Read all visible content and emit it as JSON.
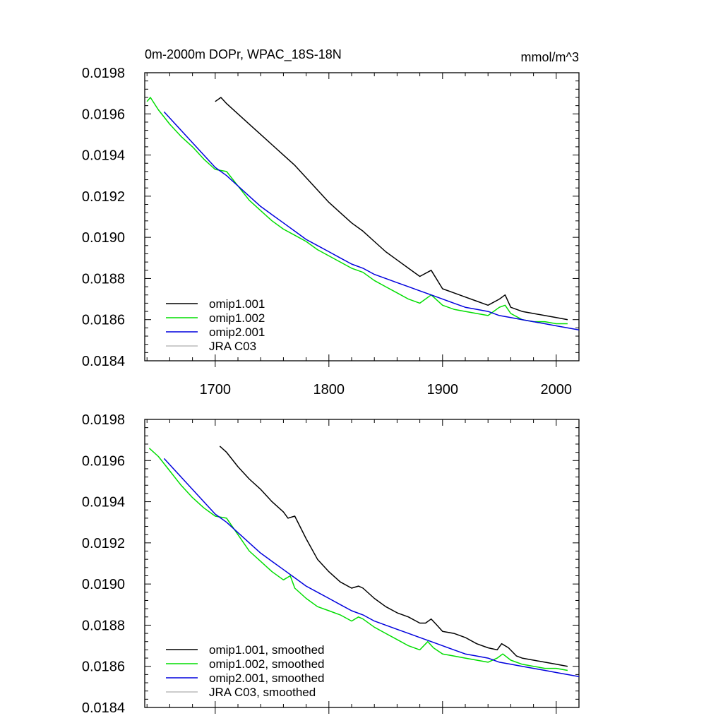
{
  "chart_data": [
    {
      "type": "line",
      "title": "0m-2000m DOPr, WPAC_18S-18N",
      "units": "mmol/m^3",
      "xlim": [
        1638,
        2020
      ],
      "ylim": [
        0.0184,
        0.0198
      ],
      "x_ticks": [
        1700,
        1800,
        1900,
        2000
      ],
      "x_tick_labels": [
        "1700",
        "1800",
        "1900",
        "2000"
      ],
      "y_ticks": [
        0.0184,
        0.0186,
        0.0188,
        0.019,
        0.0192,
        0.0194,
        0.0196,
        0.0198
      ],
      "y_tick_labels": [
        "0.0184",
        "0.0186",
        "0.0188",
        "0.0190",
        "0.0192",
        "0.0194",
        "0.0196",
        "0.0198"
      ],
      "legend_position": "bottom-left",
      "series": [
        {
          "name": "omip1.001",
          "color": "#000000",
          "x": [
            1700,
            1705,
            1710,
            1720,
            1730,
            1740,
            1750,
            1760,
            1770,
            1780,
            1790,
            1800,
            1810,
            1820,
            1830,
            1840,
            1850,
            1860,
            1870,
            1880,
            1890,
            1900,
            1910,
            1920,
            1930,
            1940,
            1950,
            1955,
            1960,
            1970,
            1980,
            1990,
            2000,
            2010
          ],
          "values": [
            0.01966,
            0.01968,
            0.01965,
            0.0196,
            0.01955,
            0.0195,
            0.01945,
            0.0194,
            0.01935,
            0.01929,
            0.01923,
            0.01917,
            0.01912,
            0.01907,
            0.01903,
            0.01898,
            0.01893,
            0.01889,
            0.01885,
            0.01881,
            0.01884,
            0.01875,
            0.01873,
            0.01871,
            0.01869,
            0.01867,
            0.0187,
            0.01872,
            0.01866,
            0.01864,
            0.01863,
            0.01862,
            0.01861,
            0.0186
          ]
        },
        {
          "name": "omip1.002",
          "color": "#00dd00",
          "x": [
            1640,
            1643,
            1650,
            1660,
            1670,
            1680,
            1690,
            1700,
            1710,
            1720,
            1730,
            1740,
            1750,
            1760,
            1770,
            1780,
            1790,
            1800,
            1810,
            1820,
            1830,
            1840,
            1850,
            1860,
            1870,
            1880,
            1890,
            1900,
            1910,
            1920,
            1930,
            1940,
            1950,
            1955,
            1960,
            1970,
            1980,
            1990,
            2000,
            2010
          ],
          "values": [
            0.01966,
            0.01968,
            0.01962,
            0.01955,
            0.01949,
            0.01944,
            0.01938,
            0.01933,
            0.01932,
            0.01925,
            0.01918,
            0.01913,
            0.01908,
            0.01904,
            0.01901,
            0.01898,
            0.01894,
            0.01891,
            0.01888,
            0.01885,
            0.01883,
            0.01879,
            0.01876,
            0.01873,
            0.0187,
            0.01868,
            0.01872,
            0.01867,
            0.01865,
            0.01864,
            0.01863,
            0.01862,
            0.01866,
            0.01867,
            0.01863,
            0.0186,
            0.01859,
            0.01859,
            0.01858,
            0.01858
          ]
        },
        {
          "name": "omip2.001",
          "color": "#0000dd",
          "x": [
            1655,
            1660,
            1670,
            1680,
            1690,
            1700,
            1710,
            1720,
            1730,
            1740,
            1750,
            1760,
            1770,
            1780,
            1790,
            1800,
            1810,
            1820,
            1830,
            1840,
            1850,
            1860,
            1870,
            1880,
            1890,
            1900,
            1910,
            1920,
            1930,
            1940,
            1950,
            1960,
            1970,
            1980,
            1990,
            2000,
            2010,
            2020
          ],
          "values": [
            0.01961,
            0.01958,
            0.01952,
            0.01946,
            0.0194,
            0.01934,
            0.0193,
            0.01925,
            0.0192,
            0.01915,
            0.01911,
            0.01907,
            0.01903,
            0.01899,
            0.01896,
            0.01893,
            0.0189,
            0.01887,
            0.01885,
            0.01882,
            0.0188,
            0.01878,
            0.01876,
            0.01874,
            0.01872,
            0.0187,
            0.01868,
            0.01866,
            0.01865,
            0.01864,
            0.01862,
            0.01861,
            0.0186,
            0.01859,
            0.01858,
            0.01857,
            0.01856,
            0.01855
          ]
        },
        {
          "name": "JRA C03",
          "color": "#bbbbbb",
          "x": [],
          "values": []
        }
      ]
    },
    {
      "type": "line",
      "title": "",
      "units": "",
      "xlim": [
        1638,
        2020
      ],
      "ylim": [
        0.0184,
        0.0198
      ],
      "x_ticks": [
        1700,
        1800,
        1900,
        2000
      ],
      "x_tick_labels": [],
      "y_ticks": [
        0.0184,
        0.0186,
        0.0188,
        0.019,
        0.0192,
        0.0194,
        0.0196,
        0.0198
      ],
      "y_tick_labels": [
        "0.0184",
        "0.0186",
        "0.0188",
        "0.0190",
        "0.0192",
        "0.0194",
        "0.0196",
        "0.0198"
      ],
      "legend_position": "bottom-left",
      "series": [
        {
          "name": "omip1.001, smoothed",
          "color": "#000000",
          "x": [
            1704,
            1710,
            1720,
            1730,
            1740,
            1750,
            1760,
            1764,
            1770,
            1780,
            1790,
            1800,
            1810,
            1820,
            1826,
            1830,
            1840,
            1850,
            1860,
            1870,
            1880,
            1885,
            1890,
            1895,
            1900,
            1910,
            1920,
            1930,
            1940,
            1948,
            1952,
            1958,
            1965,
            1970,
            1980,
            1990,
            2000,
            2010
          ],
          "values": [
            0.01967,
            0.01964,
            0.01957,
            0.01951,
            0.01946,
            0.0194,
            0.01935,
            0.01932,
            0.01933,
            0.01922,
            0.01912,
            0.01906,
            0.01901,
            0.01898,
            0.01899,
            0.01898,
            0.01893,
            0.01889,
            0.01886,
            0.01884,
            0.01881,
            0.01881,
            0.01883,
            0.0188,
            0.01877,
            0.01876,
            0.01874,
            0.01871,
            0.01869,
            0.01868,
            0.01871,
            0.01869,
            0.01865,
            0.01864,
            0.01863,
            0.01862,
            0.01861,
            0.0186
          ]
        },
        {
          "name": "omip1.002, smoothed",
          "color": "#00dd00",
          "x": [
            1642,
            1650,
            1660,
            1670,
            1680,
            1690,
            1700,
            1710,
            1720,
            1730,
            1740,
            1750,
            1760,
            1766,
            1770,
            1780,
            1790,
            1800,
            1810,
            1820,
            1826,
            1830,
            1840,
            1850,
            1860,
            1870,
            1880,
            1887,
            1892,
            1900,
            1910,
            1920,
            1930,
            1940,
            1948,
            1953,
            1960,
            1970,
            1980,
            1990,
            2000,
            2010
          ],
          "values": [
            0.01966,
            0.01962,
            0.01955,
            0.01948,
            0.01942,
            0.01937,
            0.01933,
            0.01932,
            0.01924,
            0.01916,
            0.01911,
            0.01906,
            0.01902,
            0.01904,
            0.01898,
            0.01893,
            0.01889,
            0.01887,
            0.01885,
            0.01882,
            0.01884,
            0.01883,
            0.01879,
            0.01876,
            0.01873,
            0.0187,
            0.01868,
            0.01872,
            0.01869,
            0.01866,
            0.01865,
            0.01864,
            0.01863,
            0.01862,
            0.01864,
            0.01866,
            0.01863,
            0.01861,
            0.0186,
            0.01859,
            0.01859,
            0.01858
          ]
        },
        {
          "name": "omip2.001, smoothed",
          "color": "#0000dd",
          "x": [
            1655,
            1660,
            1670,
            1680,
            1690,
            1700,
            1710,
            1720,
            1730,
            1740,
            1750,
            1760,
            1770,
            1780,
            1790,
            1800,
            1810,
            1820,
            1830,
            1840,
            1850,
            1860,
            1870,
            1880,
            1890,
            1900,
            1910,
            1920,
            1930,
            1940,
            1950,
            1960,
            1970,
            1980,
            1990,
            2000,
            2010,
            2020
          ],
          "values": [
            0.01961,
            0.01958,
            0.01952,
            0.01946,
            0.0194,
            0.01934,
            0.0193,
            0.01925,
            0.0192,
            0.01915,
            0.01911,
            0.01907,
            0.01903,
            0.01899,
            0.01896,
            0.01893,
            0.0189,
            0.01887,
            0.01885,
            0.01882,
            0.0188,
            0.01878,
            0.01876,
            0.01874,
            0.01872,
            0.0187,
            0.01868,
            0.01866,
            0.01865,
            0.01864,
            0.01862,
            0.01861,
            0.0186,
            0.01859,
            0.01858,
            0.01857,
            0.01856,
            0.01855
          ]
        },
        {
          "name": "JRA C03, smoothed",
          "color": "#bbbbbb",
          "x": [],
          "values": []
        }
      ]
    }
  ]
}
